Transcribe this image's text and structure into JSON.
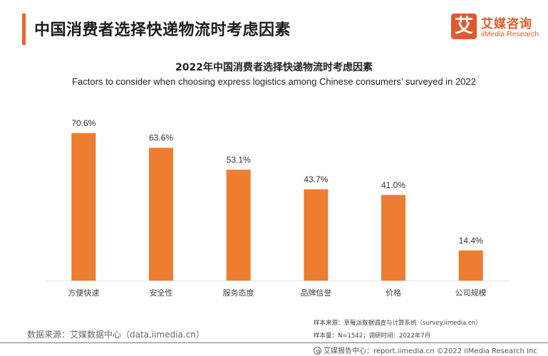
{
  "header": {
    "page_title": "中国消费者选择快递物流时考虑因素",
    "logo": {
      "mark": "艾",
      "name_cn": "艾媒咨询",
      "name_en": "iiMedia Research"
    }
  },
  "colors": {
    "accent": "#e8642c",
    "bar": "#ed7d31",
    "axis": "#e0e0e0"
  },
  "chart_data": {
    "type": "bar",
    "title": "2022年中国消费者选择快递物流时考虑因素",
    "subtitle": "Factors to consider when choosing express logistics among Chinese consumers’ surveyed in 2022",
    "xlabel": "",
    "ylabel": "",
    "ylim": [
      0,
      80
    ],
    "grid": false,
    "legend": "none",
    "categories": [
      "方便快速",
      "安全性",
      "服务态度",
      "品牌信誉",
      "价格",
      "公司规模"
    ],
    "values": [
      70.6,
      63.6,
      53.1,
      43.7,
      41.0,
      14.4
    ],
    "labels": [
      "70.6%",
      "63.6%",
      "53.1%",
      "43.7%",
      "41.0%",
      "14.4%"
    ],
    "unit": "%"
  },
  "footer": {
    "source": "数据来源：艾媒数据中心（data.iimedia.cn）",
    "sample_source": "样本来源：草莓派数据调查与计算系统（survey.iimedia.cn）",
    "sample_info": "样本量：N=1542；调研时间：2022年7月",
    "report_center": "艾媒报告中心：report.iimedia.cn   ©2022  iiMedia Research  Inc",
    "report_icon": "report-center-icon"
  }
}
